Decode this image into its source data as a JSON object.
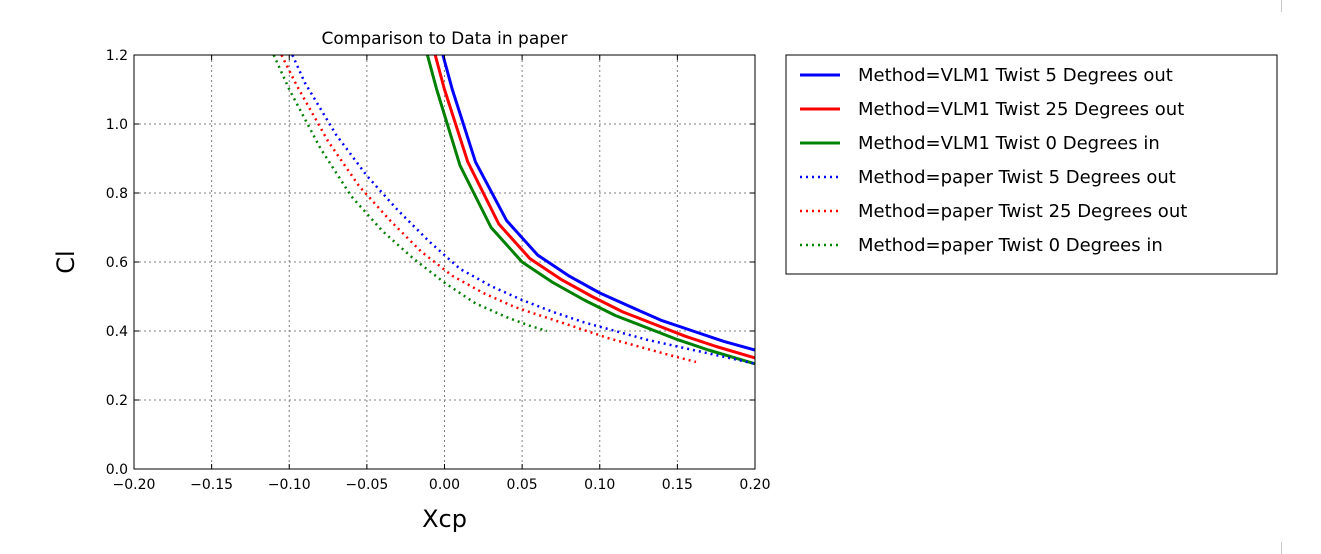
{
  "chart_data": {
    "type": "line",
    "title": "Comparison to Data in paper",
    "xlabel": "Xcp",
    "ylabel": "Cl",
    "xlim": [
      -0.2,
      0.2
    ],
    "ylim": [
      0.0,
      1.2
    ],
    "xticks": [
      "−0.20",
      "−0.15",
      "−0.10",
      "−0.05",
      "0.00",
      "0.05",
      "0.10",
      "0.15",
      "0.20"
    ],
    "yticks": [
      "0.0",
      "0.2",
      "0.4",
      "0.6",
      "0.8",
      "1.0",
      "1.2"
    ],
    "grid": true,
    "legend_position": "outside-right",
    "series": [
      {
        "name": "Method=VLM1 Twist 5 Degrees out",
        "color": "#0000ff",
        "style": "solid",
        "x": [
          -0.001,
          0.005,
          0.02,
          0.04,
          0.06,
          0.08,
          0.1,
          0.12,
          0.14,
          0.16,
          0.18,
          0.2
        ],
        "y": [
          1.2,
          1.1,
          0.89,
          0.72,
          0.62,
          0.56,
          0.51,
          0.47,
          0.43,
          0.4,
          0.37,
          0.345
        ]
      },
      {
        "name": "Method=VLM1 Twist 25 Degrees out",
        "color": "#ff0000",
        "style": "solid",
        "x": [
          -0.006,
          0.0,
          0.015,
          0.035,
          0.055,
          0.075,
          0.095,
          0.115,
          0.135,
          0.155,
          0.175,
          0.2
        ],
        "y": [
          1.2,
          1.1,
          0.89,
          0.71,
          0.61,
          0.55,
          0.5,
          0.455,
          0.42,
          0.385,
          0.355,
          0.322
        ]
      },
      {
        "name": "Method=VLM1 Twist 0 Degrees in",
        "color": "#008000",
        "style": "solid",
        "x": [
          -0.011,
          -0.005,
          0.01,
          0.03,
          0.05,
          0.07,
          0.09,
          0.11,
          0.13,
          0.15,
          0.17,
          0.2
        ],
        "y": [
          1.2,
          1.1,
          0.88,
          0.7,
          0.6,
          0.54,
          0.49,
          0.445,
          0.41,
          0.375,
          0.345,
          0.305
        ]
      },
      {
        "name": "Method=paper Twist 5 Degrees out",
        "color": "#0000ff",
        "style": "dotted",
        "x": [
          -0.098,
          -0.09,
          -0.07,
          -0.05,
          -0.03,
          -0.01,
          0.01,
          0.03,
          0.05,
          0.07,
          0.09,
          0.11,
          0.13,
          0.15,
          0.17,
          0.19,
          0.2
        ],
        "y": [
          1.2,
          1.12,
          0.97,
          0.85,
          0.75,
          0.66,
          0.58,
          0.53,
          0.49,
          0.455,
          0.425,
          0.4,
          0.375,
          0.355,
          0.335,
          0.315,
          0.305
        ]
      },
      {
        "name": "Method=paper Twist 25 Degrees out",
        "color": "#ff0000",
        "style": "dotted",
        "x": [
          -0.105,
          -0.095,
          -0.075,
          -0.055,
          -0.035,
          -0.015,
          0.005,
          0.025,
          0.045,
          0.065,
          0.085,
          0.105,
          0.125,
          0.145,
          0.162
        ],
        "y": [
          1.2,
          1.11,
          0.95,
          0.82,
          0.72,
          0.63,
          0.56,
          0.51,
          0.47,
          0.44,
          0.41,
          0.38,
          0.355,
          0.33,
          0.31
        ]
      },
      {
        "name": "Method=paper Twist 0 Degrees in",
        "color": "#008000",
        "style": "dotted",
        "x": [
          -0.11,
          -0.1,
          -0.08,
          -0.06,
          -0.04,
          -0.02,
          0.0,
          0.02,
          0.04,
          0.055,
          0.066
        ],
        "y": [
          1.2,
          1.1,
          0.93,
          0.79,
          0.69,
          0.61,
          0.54,
          0.48,
          0.44,
          0.415,
          0.4
        ]
      }
    ]
  }
}
